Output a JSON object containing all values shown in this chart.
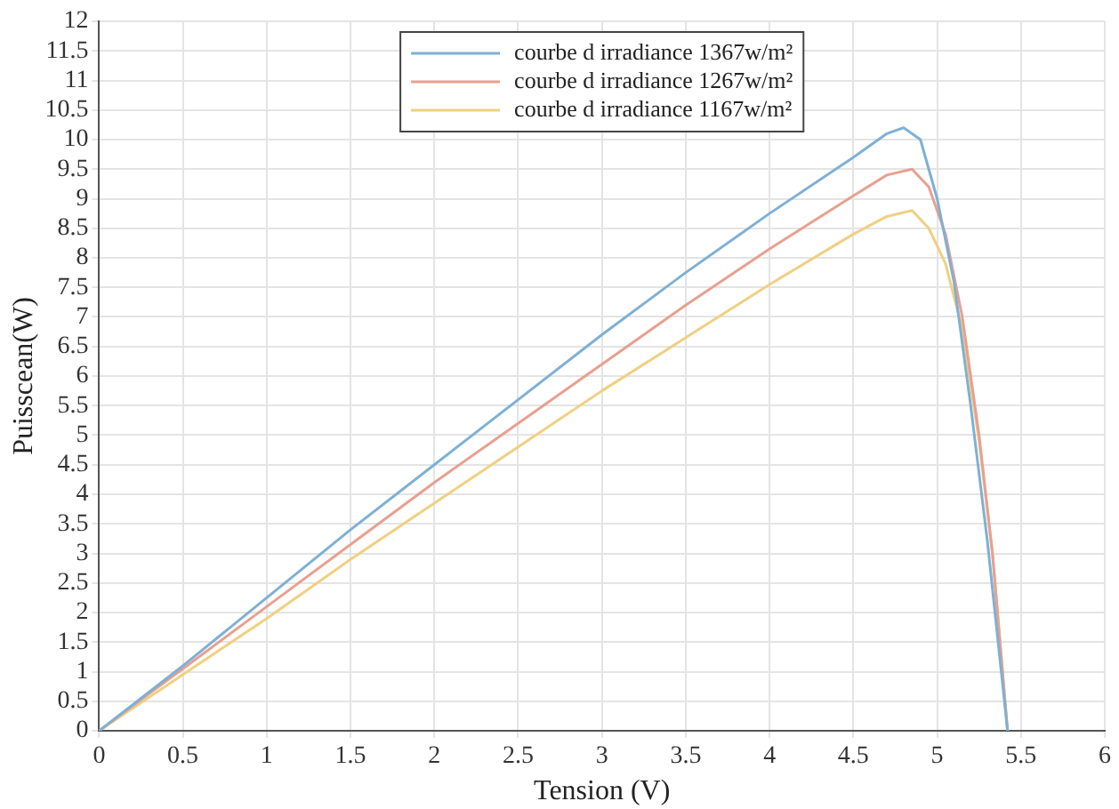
{
  "chart_data": {
    "type": "line",
    "xlabel": "Tension (V)",
    "ylabel": "Puisscean(W)",
    "xlim": [
      0,
      6
    ],
    "xticks": [
      0,
      0.5,
      1,
      1.5,
      2,
      2.5,
      3,
      3.5,
      4,
      4.5,
      5,
      5.5,
      6
    ],
    "ylim": [
      0,
      12
    ],
    "yticks": [
      0,
      0.5,
      1,
      1.5,
      2,
      2.5,
      3,
      3.5,
      4,
      4.5,
      5,
      5.5,
      6,
      6.5,
      7,
      7.5,
      8,
      8.5,
      9,
      9.5,
      10,
      10.5,
      11,
      11.5,
      12
    ],
    "grid": true,
    "legend": "top",
    "marker": "none",
    "line_style": "solid",
    "series": [
      {
        "name": "courbe d irradiance 1367w/m²",
        "color": "#7eb0d5",
        "x": [
          0,
          0.5,
          1,
          1.5,
          2,
          2.5,
          3,
          3.5,
          4,
          4.5,
          4.7,
          4.8,
          4.9,
          5.0,
          5.1,
          5.2,
          5.3,
          5.42
        ],
        "values": [
          0,
          1.1,
          2.25,
          3.4,
          4.5,
          5.6,
          6.7,
          7.75,
          8.75,
          9.7,
          10.1,
          10.2,
          10.0,
          9.0,
          7.6,
          5.5,
          3.2,
          0
        ]
      },
      {
        "name": "courbe d irradiance 1267w/m²",
        "color": "#e8a090",
        "x": [
          0,
          0.5,
          1,
          1.5,
          2,
          2.5,
          3,
          3.5,
          4,
          4.5,
          4.7,
          4.85,
          4.95,
          5.05,
          5.15,
          5.25,
          5.33,
          5.42
        ],
        "values": [
          0,
          1.05,
          2.1,
          3.15,
          4.2,
          5.2,
          6.2,
          7.2,
          8.15,
          9.05,
          9.4,
          9.5,
          9.2,
          8.4,
          7.0,
          5.0,
          3.0,
          0
        ]
      },
      {
        "name": "courbe d irradiance 1167w/m²",
        "color": "#f0d080",
        "x": [
          0,
          0.5,
          1,
          1.5,
          2,
          2.5,
          3,
          3.5,
          4,
          4.5,
          4.7,
          4.85,
          4.95,
          5.05,
          5.15,
          5.25,
          5.33,
          5.42
        ],
        "values": [
          0,
          0.95,
          1.9,
          2.9,
          3.85,
          4.8,
          5.75,
          6.65,
          7.55,
          8.4,
          8.7,
          8.8,
          8.5,
          7.9,
          6.8,
          4.9,
          3.0,
          0
        ]
      }
    ]
  }
}
